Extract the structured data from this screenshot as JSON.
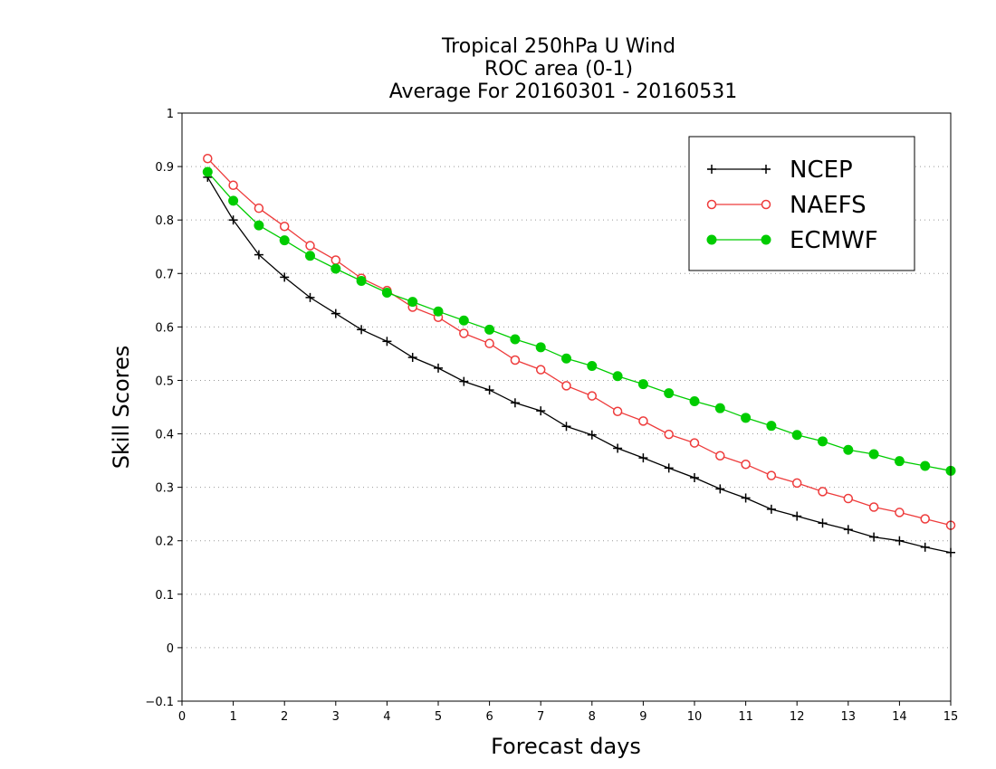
{
  "chart_data": {
    "type": "line",
    "title": "Tropical 250hPa U Wind",
    "subtitle": "ROC area (0-1)",
    "subtitle2": "Average For 20160301 - 20160531",
    "xlabel": "Forecast days",
    "ylabel": "Skill Scores",
    "xlim": [
      0,
      15
    ],
    "ylim": [
      -0.1,
      1
    ],
    "xticks": [
      "0",
      "1",
      "2",
      "3",
      "4",
      "5",
      "6",
      "7",
      "8",
      "9",
      "10",
      "11",
      "12",
      "13",
      "14",
      "15"
    ],
    "yticks": [
      "−0.1",
      "0",
      "0.1",
      "0.2",
      "0.3",
      "0.4",
      "0.5",
      "0.6",
      "0.7",
      "0.8",
      "0.9",
      "1"
    ],
    "grid": "horizontal dotted",
    "legend_position": "top-right",
    "x": [
      0.5,
      1,
      1.5,
      2,
      2.5,
      3,
      3.5,
      4,
      4.5,
      5,
      5.5,
      6,
      6.5,
      7,
      7.5,
      8,
      8.5,
      9,
      9.5,
      10,
      10.5,
      11,
      11.5,
      12,
      12.5,
      13,
      13.5,
      14,
      14.5,
      15
    ],
    "series": [
      {
        "name": "NCEP",
        "color": "#000000",
        "marker": "plus",
        "values": [
          0.88,
          0.8,
          0.735,
          0.693,
          0.655,
          0.625,
          0.595,
          0.573,
          0.543,
          0.523,
          0.498,
          0.482,
          0.458,
          0.443,
          0.414,
          0.398,
          0.373,
          0.355,
          0.336,
          0.318,
          0.297,
          0.28,
          0.259,
          0.246,
          0.233,
          0.221,
          0.207,
          0.2,
          0.188,
          0.178
        ]
      },
      {
        "name": "NAEFS",
        "color": "#ee3b3b",
        "marker": "open-circle",
        "values": [
          0.915,
          0.865,
          0.822,
          0.788,
          0.752,
          0.725,
          0.691,
          0.668,
          0.637,
          0.618,
          0.588,
          0.569,
          0.538,
          0.52,
          0.49,
          0.471,
          0.442,
          0.424,
          0.399,
          0.383,
          0.359,
          0.343,
          0.322,
          0.308,
          0.292,
          0.279,
          0.263,
          0.253,
          0.241,
          0.229
        ]
      },
      {
        "name": "ECMWF",
        "color": "#00cc00",
        "marker": "filled-circle",
        "values": [
          0.89,
          0.836,
          0.79,
          0.762,
          0.733,
          0.709,
          0.686,
          0.664,
          0.647,
          0.629,
          0.612,
          0.595,
          0.577,
          0.562,
          0.541,
          0.527,
          0.508,
          0.493,
          0.476,
          0.461,
          0.448,
          0.43,
          0.415,
          0.398,
          0.386,
          0.37,
          0.362,
          0.349,
          0.34,
          0.331
        ]
      }
    ]
  }
}
